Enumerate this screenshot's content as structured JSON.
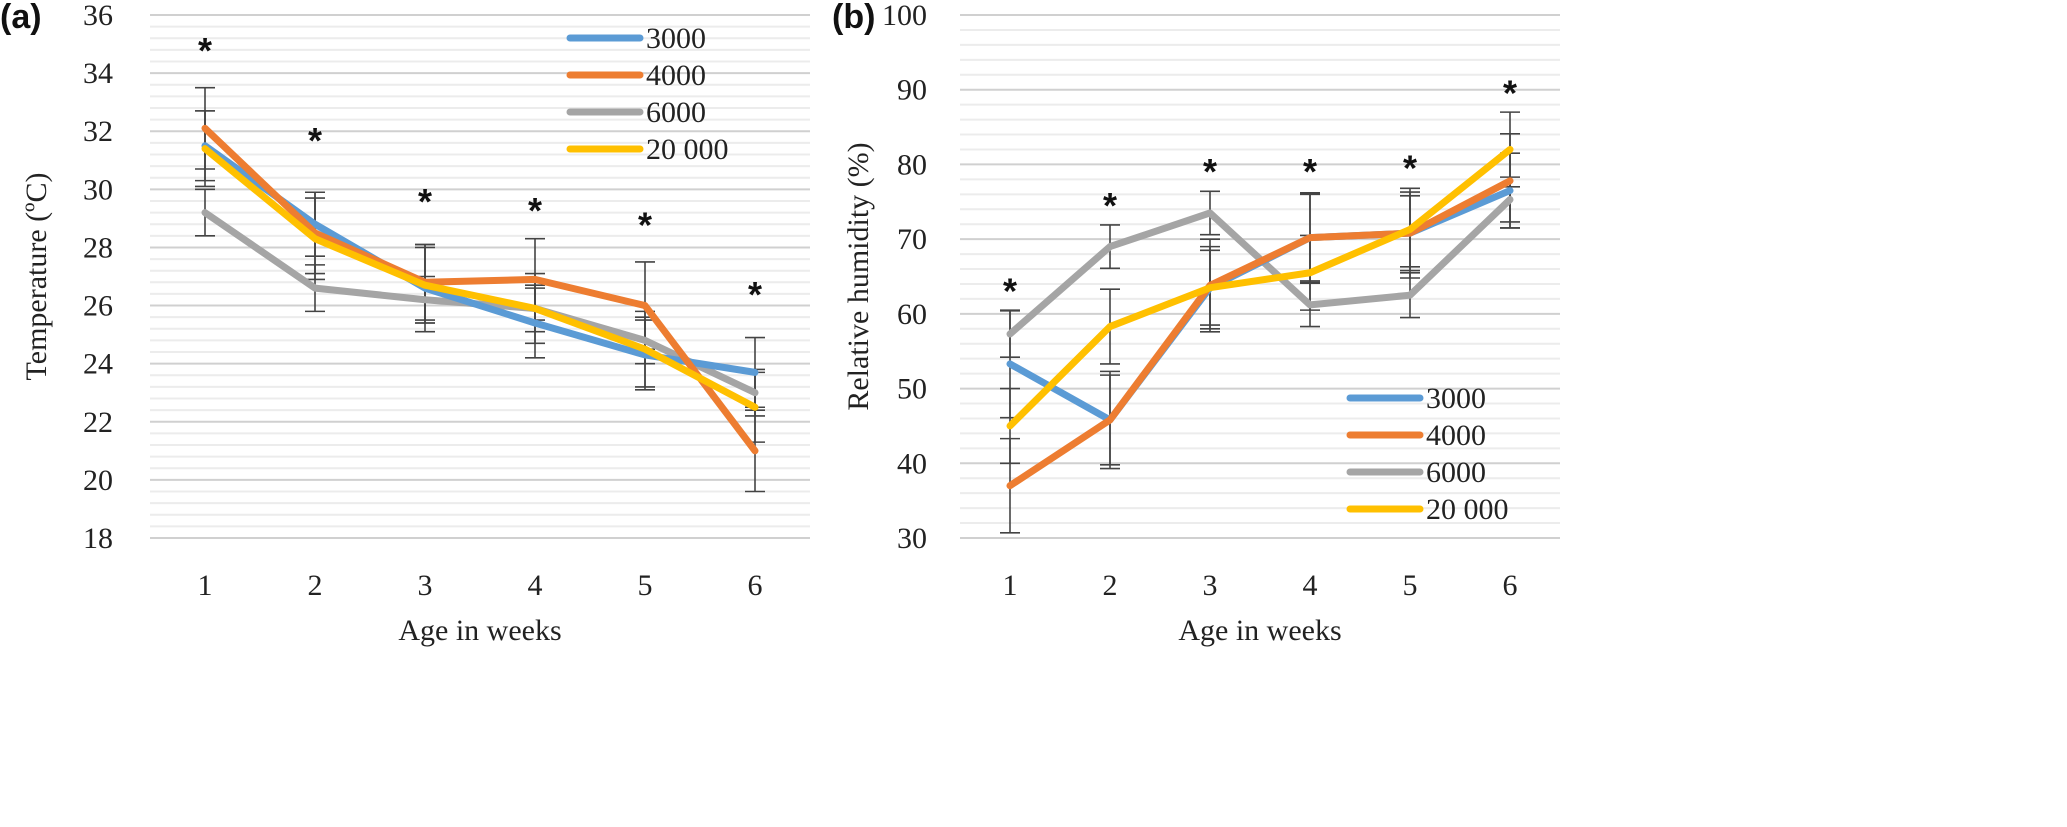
{
  "chart_data": [
    {
      "type": "line",
      "panel_label": "(a)",
      "title": "",
      "xlabel": "Age in weeks",
      "ylabel": "Temperature (ºC)",
      "categories": [
        "1",
        "2",
        "3",
        "4",
        "5",
        "6"
      ],
      "x": [
        1,
        2,
        3,
        4,
        5,
        6
      ],
      "ylim": [
        18,
        36
      ],
      "yticks": [
        18,
        20,
        22,
        24,
        26,
        28,
        30,
        32,
        34,
        36
      ],
      "minor_grid_step": 0.4,
      "grid": true,
      "legend_position": "top-right",
      "significance_markers": [
        {
          "x": 1,
          "y": 34.9,
          "label": "*"
        },
        {
          "x": 2,
          "y": 31.8,
          "label": "*"
        },
        {
          "x": 3,
          "y": 29.7,
          "label": "*"
        },
        {
          "x": 4,
          "y": 29.4,
          "label": "*"
        },
        {
          "x": 5,
          "y": 28.9,
          "label": "*"
        },
        {
          "x": 6,
          "y": 26.5,
          "label": "*"
        }
      ],
      "series": [
        {
          "name": "3000",
          "color": "#5B9BD5",
          "values": [
            31.5,
            28.8,
            26.6,
            25.4,
            24.3,
            23.7
          ],
          "errors": [
            1.2,
            1.1,
            1.5,
            1.2,
            1.2,
            1.2
          ]
        },
        {
          "name": "4000",
          "color": "#ED7D31",
          "values": [
            32.1,
            28.5,
            26.8,
            26.9,
            26.0,
            21.0
          ],
          "errors": [
            1.4,
            1.4,
            1.3,
            1.4,
            1.5,
            1.4
          ]
        },
        {
          "name": "6000",
          "color": "#A5A5A5",
          "values": [
            29.2,
            26.6,
            26.2,
            25.9,
            24.8,
            23.0
          ],
          "errors": [
            0.8,
            0.8,
            0.8,
            0.8,
            0.8,
            0.8
          ]
        },
        {
          "name": "20 000",
          "color": "#FFC000",
          "values": [
            31.4,
            28.3,
            26.7,
            25.9,
            24.5,
            22.5
          ],
          "errors": [
            1.3,
            1.4,
            1.3,
            1.2,
            1.3,
            1.2
          ]
        }
      ]
    },
    {
      "type": "line",
      "panel_label": "(b)",
      "title": "",
      "xlabel": "Age in weeks",
      "ylabel": "Relative humidity (%)",
      "categories": [
        "1",
        "2",
        "3",
        "4",
        "5",
        "6"
      ],
      "x": [
        1,
        2,
        3,
        4,
        5,
        6
      ],
      "ylim": [
        30,
        100
      ],
      "yticks": [
        30,
        40,
        50,
        60,
        70,
        80,
        90,
        100
      ],
      "minor_grid_step": 2,
      "grid": true,
      "legend_position": "bottom-right",
      "significance_markers": [
        {
          "x": 1,
          "y": 63.5,
          "label": "*"
        },
        {
          "x": 2,
          "y": 75,
          "label": "*"
        },
        {
          "x": 3,
          "y": 79.5,
          "label": "*"
        },
        {
          "x": 4,
          "y": 79.5,
          "label": "*"
        },
        {
          "x": 5,
          "y": 80,
          "label": "*"
        },
        {
          "x": 6,
          "y": 90,
          "label": "*"
        }
      ],
      "series": [
        {
          "name": "3000",
          "color": "#5B9BD5",
          "values": [
            53.3,
            45.8,
            63.5,
            70.2,
            70.8,
            76.5
          ],
          "errors": [
            7.2,
            6.0,
            5.5,
            5.8,
            5.0,
            5.0
          ]
        },
        {
          "name": "4000",
          "color": "#ED7D31",
          "values": [
            37.0,
            45.8,
            63.8,
            70.2,
            70.8,
            77.8
          ],
          "errors": [
            6.3,
            6.5,
            6.2,
            6.0,
            6.0,
            6.3
          ]
        },
        {
          "name": "6000",
          "color": "#A5A5A5",
          "values": [
            57.3,
            69.0,
            73.5,
            61.2,
            62.5,
            75.3
          ],
          "errors": [
            3.1,
            2.9,
            2.9,
            2.9,
            3.0,
            3.0
          ]
        },
        {
          "name": "20 000",
          "color": "#FFC000",
          "values": [
            45.0,
            58.3,
            63.5,
            65.5,
            71.3,
            82.0
          ],
          "errors": [
            5.0,
            5.0,
            5.0,
            5.0,
            5.0,
            5.0
          ]
        }
      ]
    }
  ]
}
